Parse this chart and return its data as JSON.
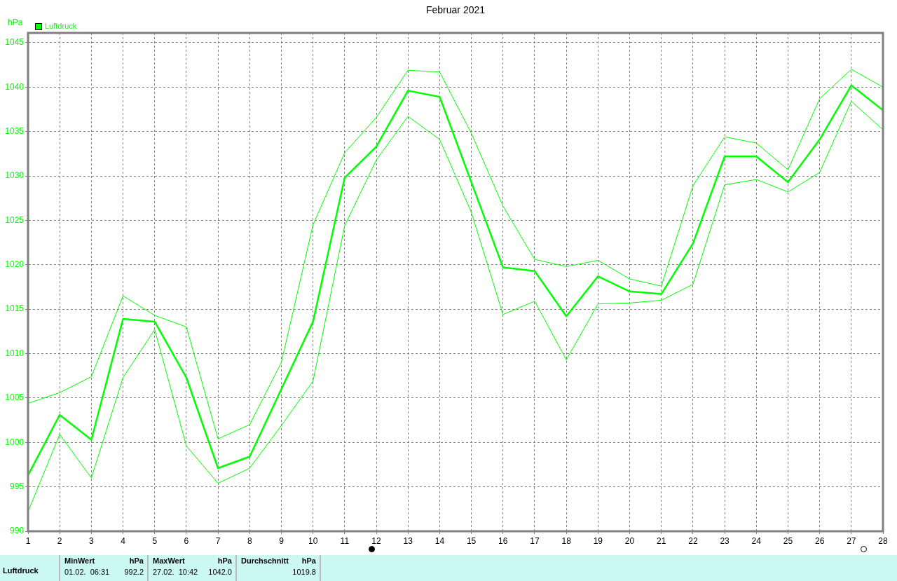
{
  "chart_data": {
    "type": "line",
    "title": "Februar 2021",
    "ylabel": "hPa",
    "x": [
      1,
      2,
      3,
      4,
      5,
      6,
      7,
      8,
      9,
      10,
      11,
      12,
      13,
      14,
      15,
      16,
      17,
      18,
      19,
      20,
      21,
      22,
      23,
      24,
      25,
      26,
      27,
      28
    ],
    "xlim": [
      1,
      28
    ],
    "xticks": [
      1,
      2,
      3,
      4,
      5,
      6,
      7,
      8,
      9,
      10,
      11,
      12,
      13,
      14,
      15,
      16,
      17,
      18,
      19,
      20,
      21,
      22,
      23,
      24,
      25,
      26,
      27,
      28
    ],
    "ylim": [
      990,
      1046.1
    ],
    "yticks": [
      990,
      995,
      1000,
      1005,
      1010,
      1015,
      1020,
      1025,
      1030,
      1035,
      1040,
      1045
    ],
    "grid": true,
    "legend": "top left",
    "marker": "none",
    "series": [
      {
        "name": "Luftdruck",
        "color": "#00ff00",
        "values": [
          996.3,
          1003.1,
          1000.3,
          1013.9,
          1013.6,
          1007.3,
          997.1,
          998.4,
          1006.0,
          1013.6,
          1029.8,
          1033.3,
          1039.6,
          1038.9,
          1029.3,
          1019.7,
          1019.3,
          1014.2,
          1018.7,
          1017.0,
          1016.7,
          1022.4,
          1032.2,
          1032.2,
          1029.3,
          1034.1,
          1040.2,
          1037.4
        ]
      },
      {
        "color": "#00ff00",
        "values": [
          992.2,
          1000.9,
          996.0,
          1007.3,
          1012.7,
          999.6,
          995.4,
          997.1,
          1001.9,
          1006.9,
          1024.4,
          1031.8,
          1036.7,
          1034.1,
          1025.9,
          1014.4,
          1015.9,
          1009.3,
          1015.6,
          1015.7,
          1016.0,
          1017.8,
          1029.0,
          1029.6,
          1028.2,
          1030.4,
          1038.4,
          1035.2
        ]
      },
      {
        "color": "#00ff00",
        "values": [
          1004.4,
          1005.6,
          1007.4,
          1016.5,
          1014.3,
          1013.0,
          1000.4,
          1002.0,
          1009.0,
          1024.5,
          1032.6,
          1036.6,
          1041.9,
          1041.7,
          1034.8,
          1026.6,
          1020.6,
          1019.8,
          1020.5,
          1018.4,
          1017.6,
          1028.9,
          1034.4,
          1033.7,
          1030.7,
          1038.7,
          1042.0,
          1040.0
        ]
      }
    ],
    "annotations": [
      "Luftdruck",
      "MinWert",
      "hPa",
      "01.02.  06:31",
      "992.2",
      "MaxWert",
      "hPa",
      "27.02.  10:42",
      "1042.0",
      "Durchschnitt",
      "hPa",
      "1019.8"
    ]
  }
}
